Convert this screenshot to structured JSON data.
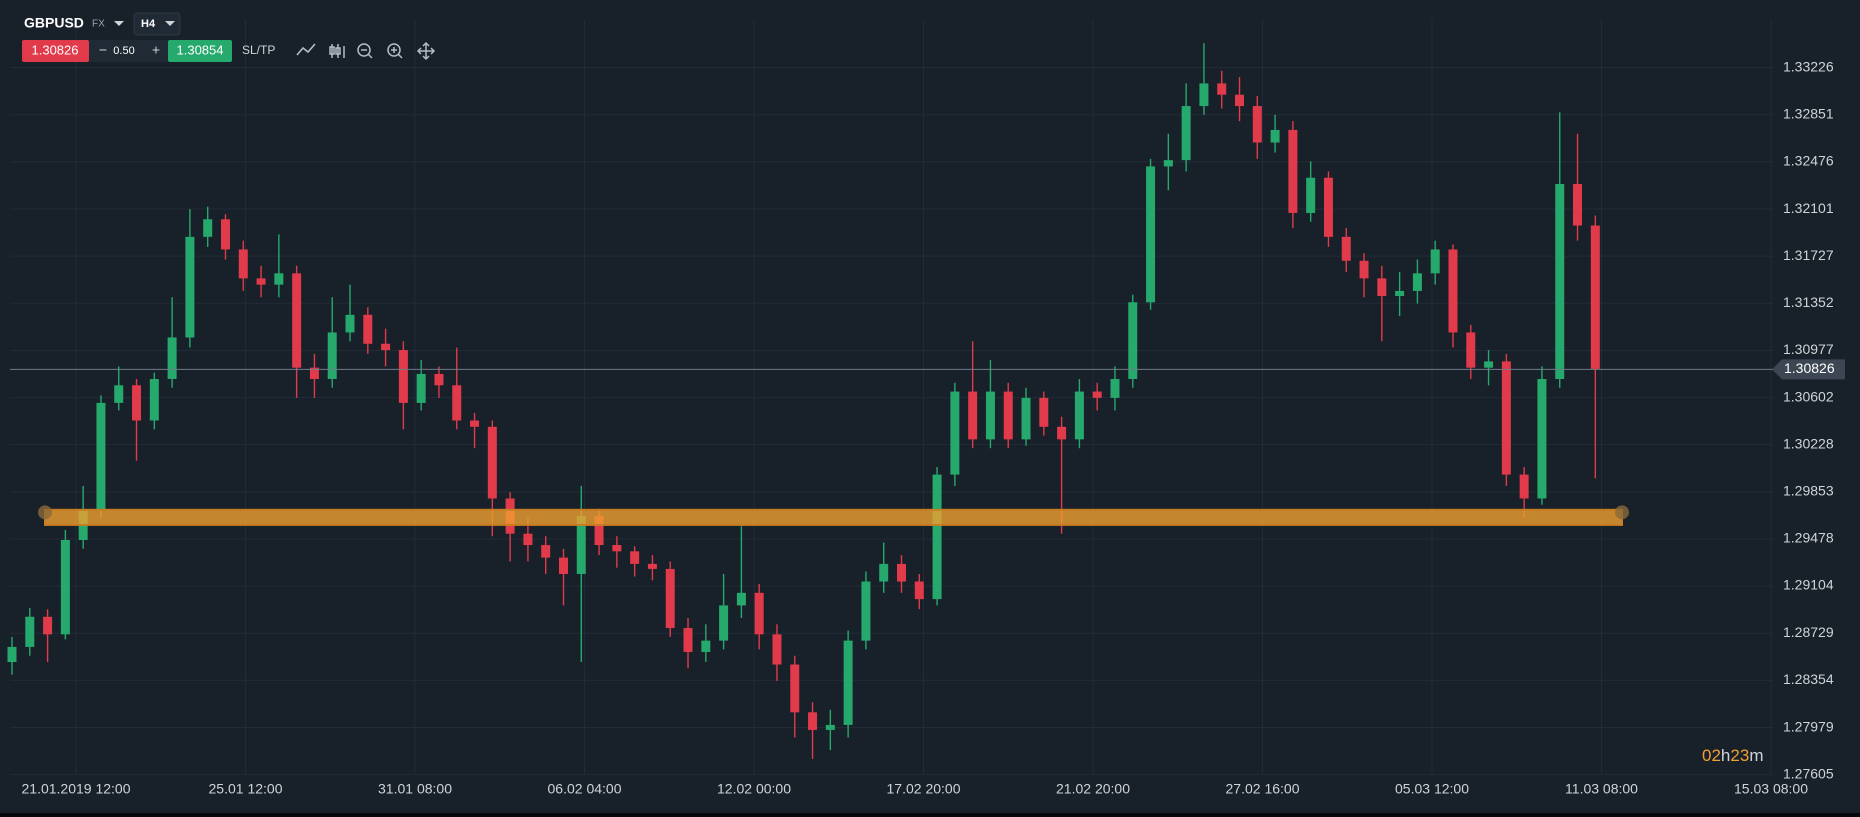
{
  "header": {
    "symbol": "GBPUSD",
    "market": "FX",
    "timeframe": "H4",
    "bid": "1.30826",
    "spread": "0.50",
    "ask": "1.30854",
    "sltp": "SL/TP",
    "countdown": [
      "02",
      "h",
      "23",
      "m"
    ]
  },
  "chart_data": {
    "type": "candlestick",
    "colors": {
      "up": "#26a96c",
      "down": "#e13a4a",
      "zone": "#f0a030"
    },
    "ylim": [
      1.27562,
      1.33604
    ],
    "yticks": [
      1.33226,
      1.32851,
      1.32476,
      1.32101,
      1.31727,
      1.31352,
      1.30977,
      1.30602,
      1.30228,
      1.29853,
      1.29478,
      1.29104,
      1.28729,
      1.28354,
      1.27979,
      1.27605
    ],
    "x_labels": [
      "21.01.2019 12:00",
      "25.01 12:00",
      "31.01 08:00",
      "06.02 04:00",
      "12.02 00:00",
      "17.02 20:00",
      "21.02 20:00",
      "27.02 16:00",
      "05.03 12:00",
      "11.03 08:00",
      "15.03 08:00"
    ],
    "grid": true,
    "current_price": 1.30826,
    "zone": [
      1.2959,
      1.2971
    ],
    "open": [
      1.285,
      1.2862,
      1.2886,
      1.2872,
      1.2947,
      1.2971,
      1.3056,
      1.307,
      1.3042,
      1.3075,
      1.3108,
      1.3188,
      1.3202,
      1.3178,
      1.3155,
      1.315,
      1.3159,
      1.3084,
      1.3075,
      1.3112,
      1.3126,
      1.3103,
      1.3098,
      1.3056,
      1.3079,
      1.307,
      1.3042,
      1.3037,
      1.298,
      1.2952,
      1.2943,
      1.2933,
      1.292,
      1.2966,
      1.2943,
      1.2938,
      1.2928,
      1.2924,
      1.2877,
      1.2858,
      1.2867,
      1.2895,
      1.2905,
      1.2872,
      1.2848,
      1.281,
      1.2796,
      1.28,
      1.2867,
      1.2914,
      1.2928,
      1.2914,
      1.29,
      1.2999,
      1.3065,
      1.3027,
      1.3065,
      1.3027,
      1.306,
      1.3037,
      1.3027,
      1.3065,
      1.306,
      1.3075,
      1.3136,
      1.3244,
      1.3249,
      1.3292,
      1.331,
      1.3301,
      1.3292,
      1.3263,
      1.3273,
      1.3207,
      1.3235,
      1.3188,
      1.3169,
      1.3155,
      1.3141,
      1.3145,
      1.3159,
      1.3178,
      1.3112,
      1.3084,
      1.3089,
      1.2999,
      1.298,
      1.3075,
      1.323,
      1.3197
    ],
    "high": [
      1.287,
      1.2893,
      1.2892,
      1.2955,
      1.299,
      1.3062,
      1.3085,
      1.3075,
      1.308,
      1.314,
      1.321,
      1.3212,
      1.3206,
      1.3185,
      1.3165,
      1.319,
      1.3165,
      1.3095,
      1.314,
      1.315,
      1.3132,
      1.3115,
      1.3105,
      1.309,
      1.3085,
      1.31,
      1.3048,
      1.3042,
      1.2985,
      1.2965,
      1.295,
      1.294,
      1.299,
      1.2972,
      1.295,
      1.2942,
      1.2935,
      1.293,
      1.2885,
      1.288,
      1.292,
      1.2958,
      1.2912,
      1.288,
      1.2855,
      1.2818,
      1.2812,
      1.2875,
      1.2922,
      1.2945,
      1.2935,
      1.292,
      1.3005,
      1.3072,
      1.3105,
      1.309,
      1.3072,
      1.3068,
      1.3065,
      1.3045,
      1.3075,
      1.3072,
      1.3085,
      1.3142,
      1.325,
      1.327,
      1.331,
      1.3342,
      1.332,
      1.3315,
      1.33,
      1.3285,
      1.328,
      1.3248,
      1.324,
      1.3195,
      1.3175,
      1.3165,
      1.316,
      1.317,
      1.3185,
      1.3182,
      1.3118,
      1.3098,
      1.3095,
      1.3005,
      1.3085,
      1.3287,
      1.327,
      1.3205
    ],
    "low": [
      1.284,
      1.2855,
      1.285,
      1.2868,
      1.294,
      1.2965,
      1.305,
      1.301,
      1.3035,
      1.3068,
      1.31,
      1.318,
      1.317,
      1.3145,
      1.314,
      1.314,
      1.306,
      1.306,
      1.3068,
      1.3105,
      1.3095,
      1.3085,
      1.3035,
      1.305,
      1.306,
      1.3035,
      1.302,
      1.295,
      1.293,
      1.293,
      1.292,
      1.2895,
      1.285,
      1.2935,
      1.2925,
      1.2918,
      1.2915,
      1.287,
      1.2845,
      1.285,
      1.286,
      1.2885,
      1.286,
      1.2835,
      1.279,
      1.2773,
      1.278,
      1.279,
      1.286,
      1.2905,
      1.2905,
      1.2892,
      1.2895,
      1.299,
      1.302,
      1.302,
      1.302,
      1.3022,
      1.303,
      1.2952,
      1.302,
      1.305,
      1.305,
      1.3068,
      1.313,
      1.3225,
      1.324,
      1.3285,
      1.329,
      1.328,
      1.325,
      1.3255,
      1.3195,
      1.32,
      1.318,
      1.316,
      1.314,
      1.3105,
      1.3125,
      1.3135,
      1.315,
      1.31,
      1.3075,
      1.307,
      1.299,
      1.2965,
      1.2975,
      1.3068,
      1.3185,
      1.2996
    ],
    "close": [
      1.2862,
      1.2886,
      1.2872,
      1.2947,
      1.2971,
      1.3056,
      1.307,
      1.3042,
      1.3075,
      1.3108,
      1.3188,
      1.3202,
      1.3178,
      1.3155,
      1.315,
      1.3159,
      1.3084,
      1.3075,
      1.3112,
      1.3126,
      1.3103,
      1.3098,
      1.3056,
      1.3079,
      1.307,
      1.3042,
      1.3037,
      1.298,
      1.2952,
      1.2943,
      1.2933,
      1.292,
      1.2966,
      1.2943,
      1.2938,
      1.2928,
      1.2924,
      1.2877,
      1.2858,
      1.2867,
      1.2895,
      1.2905,
      1.2872,
      1.2848,
      1.281,
      1.2796,
      1.28,
      1.2867,
      1.2914,
      1.2928,
      1.2914,
      1.29,
      1.2999,
      1.3065,
      1.3027,
      1.3065,
      1.3027,
      1.306,
      1.3037,
      1.3027,
      1.3065,
      1.306,
      1.3075,
      1.3136,
      1.3244,
      1.3249,
      1.3292,
      1.331,
      1.3301,
      1.3292,
      1.3263,
      1.3273,
      1.3207,
      1.3235,
      1.3188,
      1.3169,
      1.3155,
      1.3141,
      1.3145,
      1.3159,
      1.3178,
      1.3112,
      1.3084,
      1.3089,
      1.2999,
      1.298,
      1.3075,
      1.323,
      1.3197,
      1.3083
    ]
  }
}
